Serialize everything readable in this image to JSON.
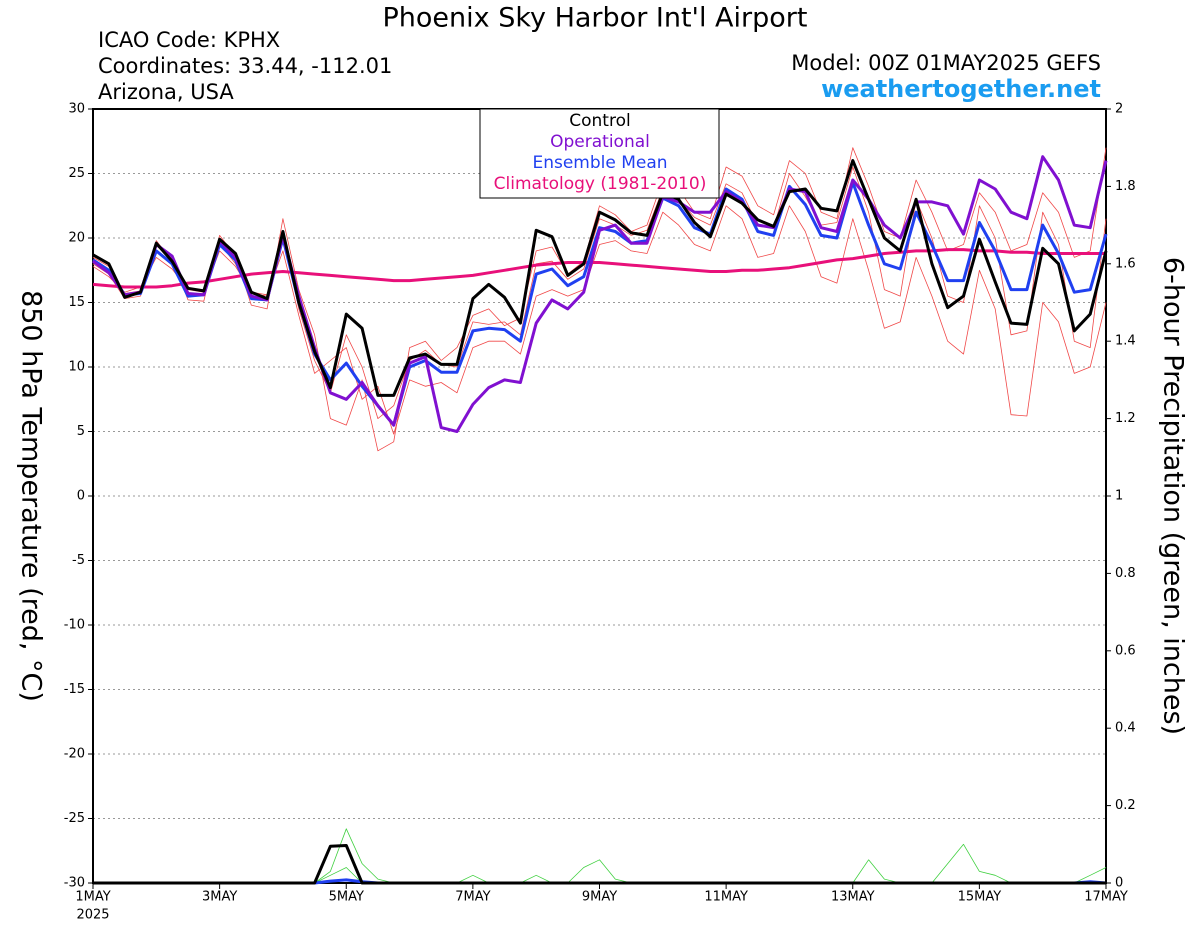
{
  "chart_data": {
    "type": "line",
    "title": "Phoenix Sky Harbor Int'l Airport",
    "location_lines": [
      "ICAO Code: KPHX",
      "Coordinates: 33.44, -112.01",
      "Arizona, USA"
    ],
    "model": "Model: 00Z 01MAY2025 GEFS",
    "source": "weathertogether.net",
    "ylabel": "850 hPa Temperature (red, °C)",
    "y2label": "6-hour Precipitation (green, inches)",
    "x_year_label": "2025",
    "xlim": [
      1,
      17
    ],
    "xticks": [
      {
        "value": 1,
        "label": "1MAY"
      },
      {
        "value": 3,
        "label": "3MAY"
      },
      {
        "value": 5,
        "label": "5MAY"
      },
      {
        "value": 7,
        "label": "7MAY"
      },
      {
        "value": 9,
        "label": "9MAY"
      },
      {
        "value": 11,
        "label": "11MAY"
      },
      {
        "value": 13,
        "label": "13MAY"
      },
      {
        "value": 15,
        "label": "15MAY"
      },
      {
        "value": 17,
        "label": "17MAY"
      }
    ],
    "ylim": [
      -30,
      30
    ],
    "yticks": [
      -30,
      -25,
      -20,
      -15,
      -10,
      -5,
      0,
      5,
      10,
      15,
      20,
      25,
      30
    ],
    "y2lim": [
      0,
      2
    ],
    "y2ticks": [
      0,
      0.2,
      0.4,
      0.6,
      0.8,
      1,
      1.2,
      1.4,
      1.6,
      1.8,
      2
    ],
    "grid": true,
    "x": [
      1,
      1.25,
      1.5,
      1.75,
      2,
      2.25,
      2.5,
      2.75,
      3,
      3.25,
      3.5,
      3.75,
      4,
      4.25,
      4.5,
      4.75,
      5,
      5.25,
      5.5,
      5.75,
      6,
      6.25,
      6.5,
      6.75,
      7,
      7.25,
      7.5,
      7.75,
      8,
      8.25,
      8.5,
      8.75,
      9,
      9.25,
      9.5,
      9.75,
      10,
      10.25,
      10.5,
      10.75,
      11,
      11.25,
      11.5,
      11.75,
      12,
      12.25,
      12.5,
      12.75,
      13,
      13.25,
      13.5,
      13.75,
      14,
      14.25,
      14.5,
      14.75,
      15,
      15.25,
      15.5,
      15.75,
      16,
      16.25,
      16.5,
      16.75,
      17
    ],
    "series": [
      {
        "color": "#f04848",
        "values": [
          18,
          17.2,
          15.3,
          15.5,
          19.4,
          18.4,
          15.2,
          15.1,
          20.2,
          18.6,
          14.8,
          14.5,
          21.5,
          16,
          12.5,
          6,
          5.5,
          9,
          3.5,
          4.2,
          11.5,
          12,
          10.5,
          11.5,
          14,
          14.5,
          13.2,
          13.8,
          19,
          19.3,
          17.2,
          18.2,
          22.5,
          21.8,
          20.5,
          21,
          24.5,
          23.8,
          22,
          21.5,
          25.5,
          24.8,
          22.5,
          21.8,
          26,
          25,
          22,
          21.5,
          27,
          24,
          20.5,
          20,
          24.5,
          22,
          19,
          19.5,
          23.5,
          22,
          19,
          19.5,
          23.5,
          22,
          18.5,
          19,
          27
        ]
      },
      {
        "color": "#f04848",
        "values": [
          17.8,
          17,
          15.8,
          16.2,
          18.5,
          17.6,
          16,
          15.8,
          19,
          17.8,
          15.8,
          15.6,
          19,
          14,
          9.5,
          10.5,
          11.5,
          7.5,
          8.5,
          4.8,
          9,
          8.5,
          8.8,
          8,
          11.5,
          12,
          12,
          11,
          15.5,
          16,
          15.5,
          16,
          19.5,
          19.8,
          19,
          18.8,
          22,
          21,
          19.5,
          19,
          22.5,
          21.5,
          18.5,
          18.8,
          22.5,
          20.5,
          17,
          16.5,
          21.5,
          17.5,
          13,
          13.5,
          18.5,
          15.5,
          12,
          11,
          17.5,
          14.5,
          6.3,
          6.2,
          15,
          13.5,
          9.5,
          10,
          15
        ]
      },
      {
        "color": "#f04848",
        "values": [
          18.5,
          17.8,
          15.7,
          15.9,
          19.8,
          18.2,
          15.4,
          15.7,
          19.6,
          18,
          15.4,
          15.6,
          20.5,
          14.5,
          10.5,
          8,
          12.5,
          10,
          6,
          7,
          10.5,
          11.3,
          10.2,
          10,
          13.5,
          13.3,
          13.5,
          12.5,
          18,
          18.2,
          16.8,
          17.6,
          21.5,
          21,
          20.2,
          20.6,
          23.8,
          23,
          21.6,
          21,
          24.2,
          23.5,
          21,
          20.8,
          25,
          23.2,
          21,
          21.2,
          25.5,
          22,
          16,
          15.5,
          23,
          20,
          15.5,
          15,
          22.5,
          20,
          12.5,
          12.8,
          22,
          19.5,
          12,
          11.5,
          21.5
        ]
      },
      {
        "color": "#40d040",
        "axis": "y2",
        "values": [
          0,
          0,
          0,
          0,
          0,
          0,
          0,
          0,
          0,
          0,
          0,
          0,
          0,
          0,
          0,
          0.03,
          0.14,
          0.05,
          0.01,
          0,
          0,
          0,
          0,
          0,
          0.02,
          0,
          0,
          0,
          0.02,
          0,
          0,
          0.04,
          0.06,
          0.01,
          0,
          0,
          0,
          0,
          0,
          0,
          0,
          0,
          0,
          0,
          0,
          0,
          0,
          0,
          0,
          0.06,
          0.01,
          0,
          0,
          0,
          0,
          0,
          0,
          0,
          0,
          0,
          0,
          0,
          0,
          0.02,
          0.04
        ]
      },
      {
        "color": "#40d040",
        "axis": "y2",
        "values": [
          0,
          0,
          0,
          0,
          0,
          0,
          0,
          0,
          0,
          0,
          0,
          0,
          0,
          0,
          0,
          0.02,
          0.04,
          0,
          0,
          0,
          0,
          0,
          0,
          0,
          0,
          0,
          0,
          0,
          0,
          0,
          0,
          0,
          0,
          0,
          0,
          0,
          0,
          0,
          0,
          0,
          0,
          0,
          0,
          0,
          0,
          0,
          0,
          0,
          0,
          0,
          0,
          0,
          0,
          0,
          0.05,
          0.1,
          0.03,
          0.02,
          0,
          0,
          0,
          0,
          0,
          0,
          0
        ]
      },
      {
        "color": "#2040f0",
        "axis": "y2",
        "values": [
          0,
          0,
          0,
          0,
          0,
          0,
          0,
          0,
          0,
          0,
          0,
          0,
          0,
          0,
          0,
          0.005,
          0.008,
          0.003,
          0,
          0,
          0,
          0,
          0,
          0,
          0,
          0,
          0,
          0,
          0,
          0,
          0,
          0,
          0,
          0,
          0,
          0,
          0,
          0,
          0,
          0,
          0,
          0,
          0,
          0,
          0,
          0,
          0,
          0,
          0,
          0,
          0,
          0,
          0,
          0,
          0,
          0,
          0,
          0,
          0,
          0,
          0,
          0,
          0,
          0.003,
          0
        ]
      },
      {
        "color": "#000000",
        "axis": "y2",
        "values": [
          0,
          0,
          0,
          0,
          0,
          0,
          0,
          0,
          0,
          0,
          0,
          0,
          0,
          0,
          0,
          0.095,
          0.097,
          0,
          0,
          0,
          0,
          0,
          0,
          0,
          0,
          0,
          0,
          0,
          0,
          0,
          0,
          0,
          0,
          0,
          0,
          0,
          0,
          0,
          0,
          0,
          0,
          0,
          0,
          0,
          0,
          0,
          0,
          0,
          0,
          0,
          0,
          0,
          0,
          0,
          0,
          0,
          0,
          0,
          0,
          0,
          0,
          0,
          0,
          0,
          0
        ]
      },
      {
        "name": "Control",
        "color": "#000000",
        "values": [
          18.7,
          18,
          15.4,
          15.8,
          19.6,
          18.2,
          16.1,
          15.9,
          19.9,
          18.8,
          15.8,
          15.3,
          20.5,
          15,
          11.2,
          8.4,
          14.1,
          13,
          7.8,
          7.8,
          10.7,
          11,
          10.2,
          10.2,
          15.3,
          16.4,
          15.4,
          13.4,
          20.6,
          20.1,
          17.1,
          18,
          22,
          21.4,
          20.4,
          20.2,
          23.5,
          23,
          21.2,
          20.1,
          23.4,
          22.7,
          21.4,
          20.9,
          23.6,
          23.8,
          22.3,
          22.1,
          26,
          23,
          20,
          19,
          23,
          18,
          14.6,
          15.5,
          19.9,
          16.6,
          13.4,
          13.3,
          19.2,
          18,
          12.8,
          14.1,
          19
        ]
      },
      {
        "name": "Operational",
        "color": "#8010d0",
        "values": [
          18.2,
          17.3,
          15.6,
          15.8,
          19.5,
          18.6,
          15.7,
          15.6,
          19.8,
          18.5,
          15.5,
          15.2,
          20.2,
          15.5,
          11.5,
          8,
          7.5,
          8.8,
          7,
          5.5,
          10.3,
          10.8,
          5.3,
          5,
          7.1,
          8.4,
          9,
          8.8,
          13.4,
          15.2,
          14.5,
          15.8,
          20.6,
          21,
          19.6,
          19.6,
          23.2,
          22.8,
          22,
          22,
          23.6,
          22.8,
          21,
          20.8,
          23.8,
          23.6,
          20.8,
          20.5,
          24.5,
          23,
          21,
          20,
          22.8,
          22.8,
          22.5,
          20.3,
          24.5,
          23.8,
          22,
          21.5,
          26.3,
          24.5,
          21,
          20.8,
          26
        ]
      },
      {
        "name": "Ensemble Mean",
        "color": "#2040f0",
        "values": [
          18.3,
          17.5,
          15.6,
          15.7,
          19,
          18,
          15.5,
          15.6,
          19.5,
          18.3,
          15.3,
          15.2,
          20,
          15,
          11,
          9,
          10.3,
          8.5,
          7,
          5.5,
          10,
          10.5,
          9.6,
          9.6,
          12.8,
          13,
          12.9,
          12,
          17.2,
          17.6,
          16.3,
          17,
          20.8,
          20.5,
          19.6,
          19.8,
          23.1,
          22.5,
          20.8,
          20.3,
          23.8,
          23,
          20.5,
          20.2,
          24,
          22.6,
          20.2,
          20,
          24.3,
          21,
          18,
          17.6,
          22,
          19.5,
          16.7,
          16.7,
          21.2,
          19,
          16,
          16,
          21,
          18.8,
          15.8,
          16,
          20.3
        ]
      },
      {
        "name": "Climatology (1981-2010)",
        "color": "#e8107a",
        "values": [
          16.4,
          16.3,
          16.2,
          16.2,
          16.2,
          16.3,
          16.5,
          16.6,
          16.8,
          17,
          17.2,
          17.3,
          17.4,
          17.3,
          17.2,
          17.1,
          17,
          16.9,
          16.8,
          16.7,
          16.7,
          16.8,
          16.9,
          17,
          17.1,
          17.3,
          17.5,
          17.7,
          17.9,
          18,
          18.1,
          18.1,
          18.1,
          18,
          17.9,
          17.8,
          17.7,
          17.6,
          17.5,
          17.4,
          17.4,
          17.5,
          17.5,
          17.6,
          17.7,
          17.9,
          18.1,
          18.3,
          18.4,
          18.6,
          18.8,
          18.9,
          19,
          19,
          19.1,
          19.1,
          19,
          19,
          18.9,
          18.9,
          18.8,
          18.8,
          18.8,
          18.8,
          18.8
        ]
      }
    ]
  }
}
